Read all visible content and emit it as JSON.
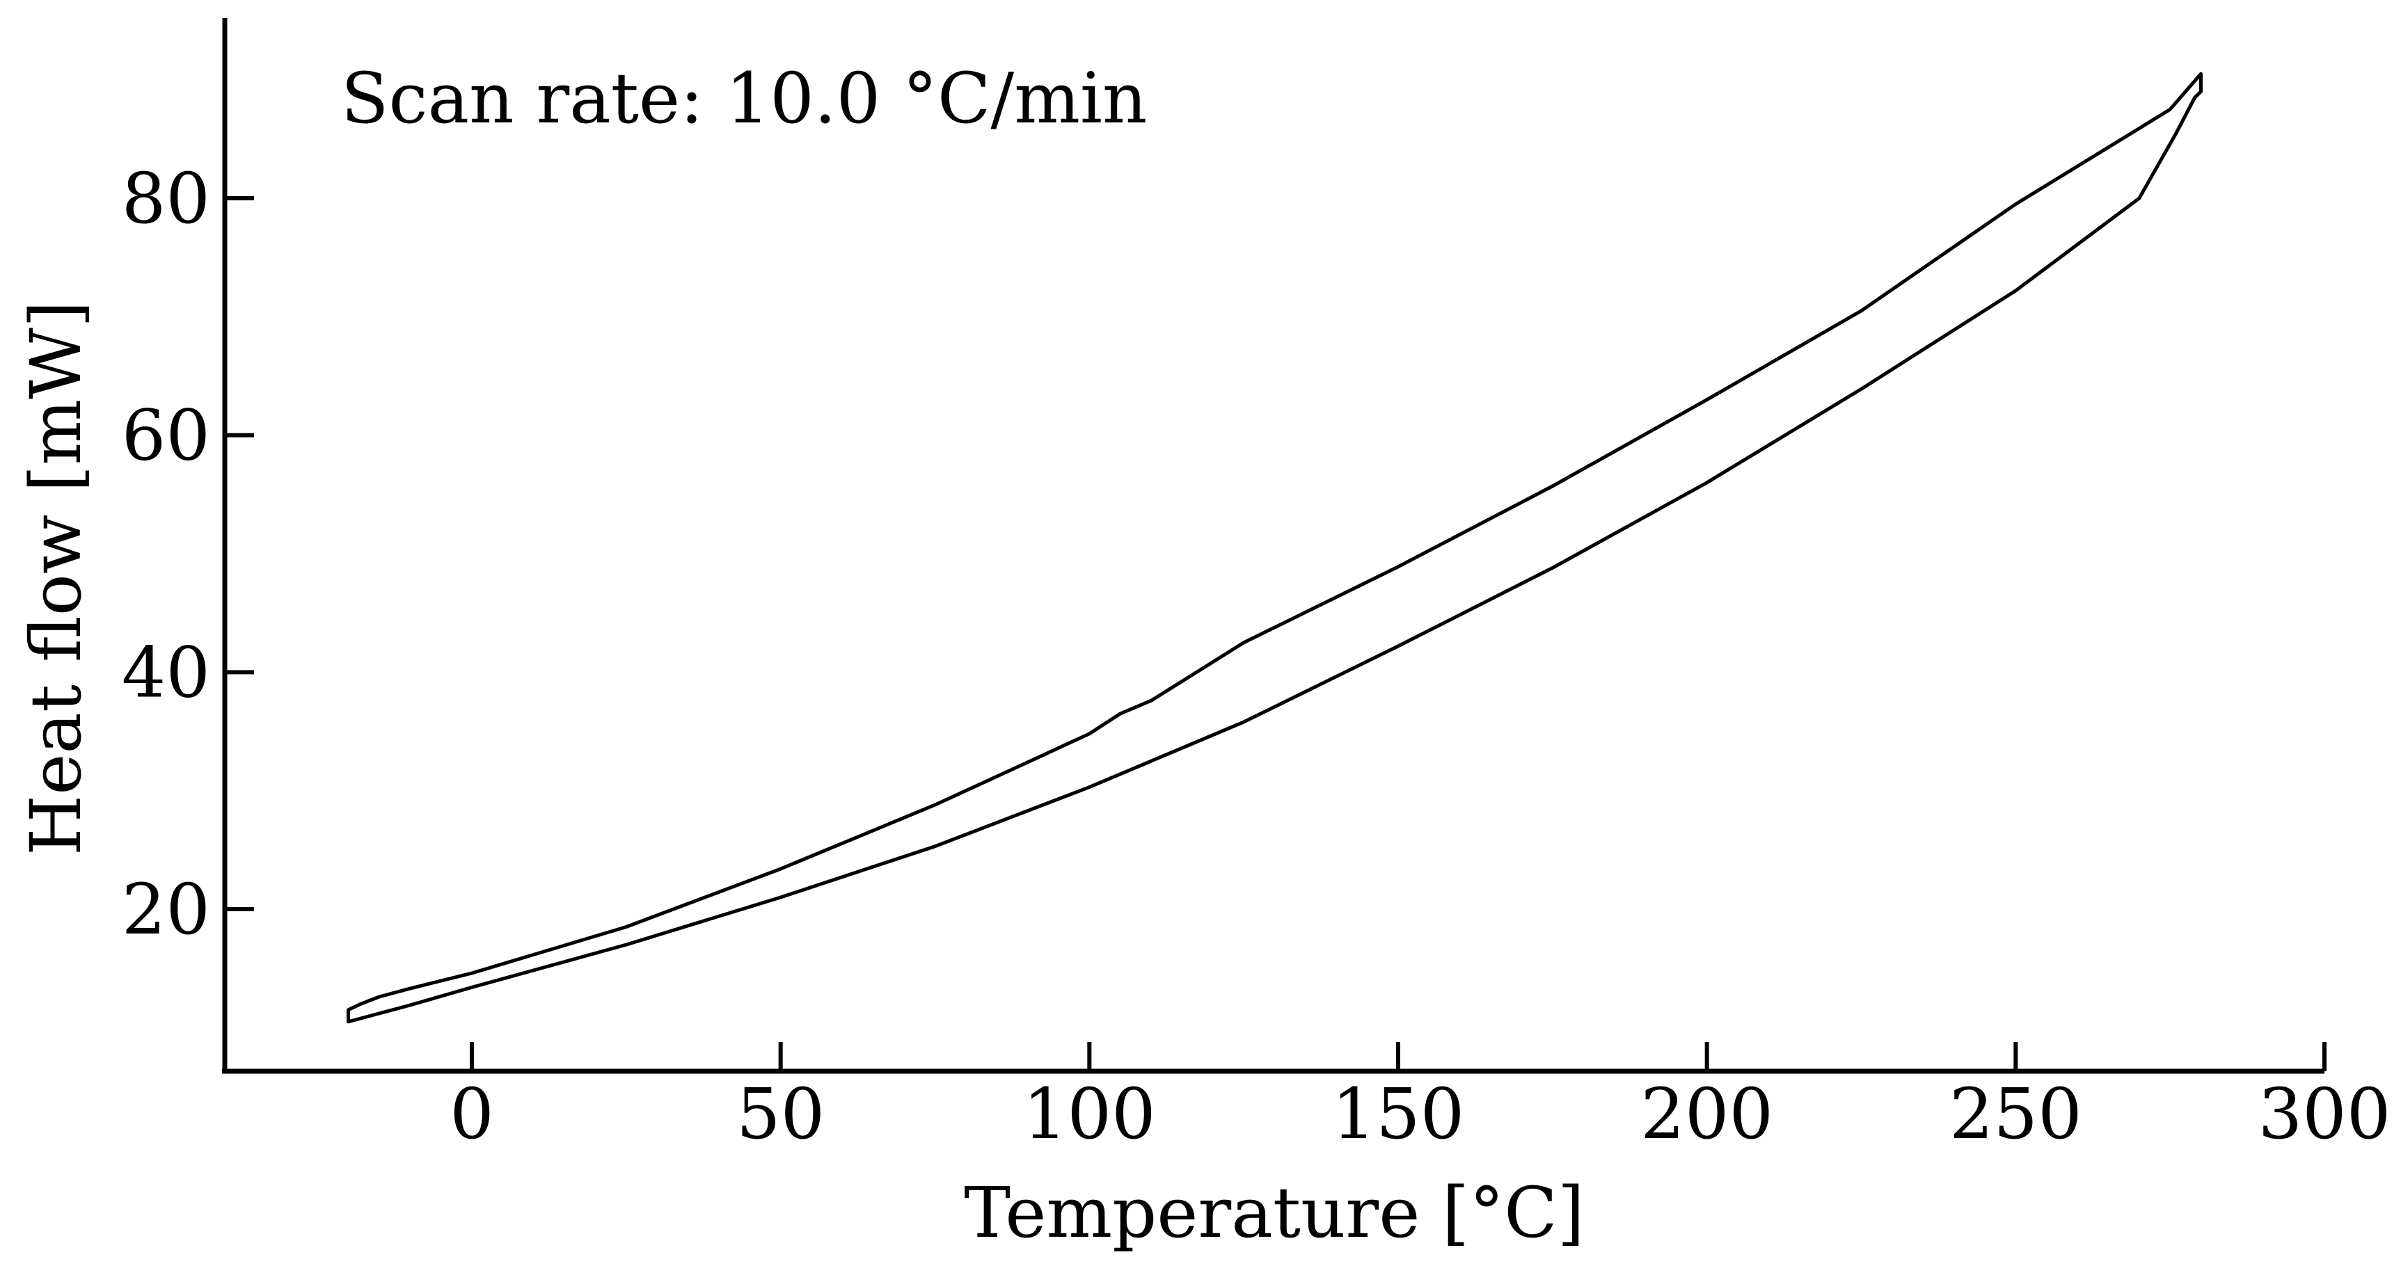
{
  "chart_data": {
    "type": "line",
    "title": "",
    "xlabel": "Temperature [°C]",
    "ylabel": "Heat flow [mW]",
    "xlim": [
      -40,
      300
    ],
    "ylim": [
      6.5,
      95
    ],
    "x_ticks": [
      0,
      50,
      100,
      150,
      200,
      250,
      300
    ],
    "y_ticks": [
      20,
      40,
      60,
      80
    ],
    "grid": false,
    "legend": "none",
    "annotation": "Scan rate: 10.0 °C/min",
    "line_color": "#000000",
    "series": [
      {
        "points": [
          [
            -20,
            10.5
          ],
          [
            -10,
            11.9
          ],
          [
            0,
            13.4
          ],
          [
            25,
            17.0
          ],
          [
            50,
            21.0
          ],
          [
            75,
            25.3
          ],
          [
            100,
            30.3
          ],
          [
            110,
            32.5
          ],
          [
            125,
            35.8
          ],
          [
            150,
            42.2
          ],
          [
            175,
            48.8
          ],
          [
            200,
            56.0
          ],
          [
            225,
            63.9
          ],
          [
            250,
            72.2
          ],
          [
            270,
            80.0
          ],
          [
            276,
            85.5
          ],
          [
            279,
            88.5
          ],
          [
            280,
            89.0
          ],
          [
            280,
            90.5
          ],
          [
            275,
            87.5
          ],
          [
            250,
            79.5
          ],
          [
            225,
            70.5
          ],
          [
            200,
            63.0
          ],
          [
            175,
            55.7
          ],
          [
            150,
            48.9
          ],
          [
            125,
            42.5
          ],
          [
            110,
            37.6
          ],
          [
            105,
            36.5
          ],
          [
            100,
            34.8
          ],
          [
            75,
            28.8
          ],
          [
            50,
            23.4
          ],
          [
            25,
            18.5
          ],
          [
            0,
            14.6
          ],
          [
            -10,
            13.3
          ],
          [
            -15,
            12.6
          ],
          [
            -18,
            12.0
          ],
          [
            -20,
            11.5
          ],
          [
            -20,
            10.5
          ]
        ]
      }
    ]
  }
}
